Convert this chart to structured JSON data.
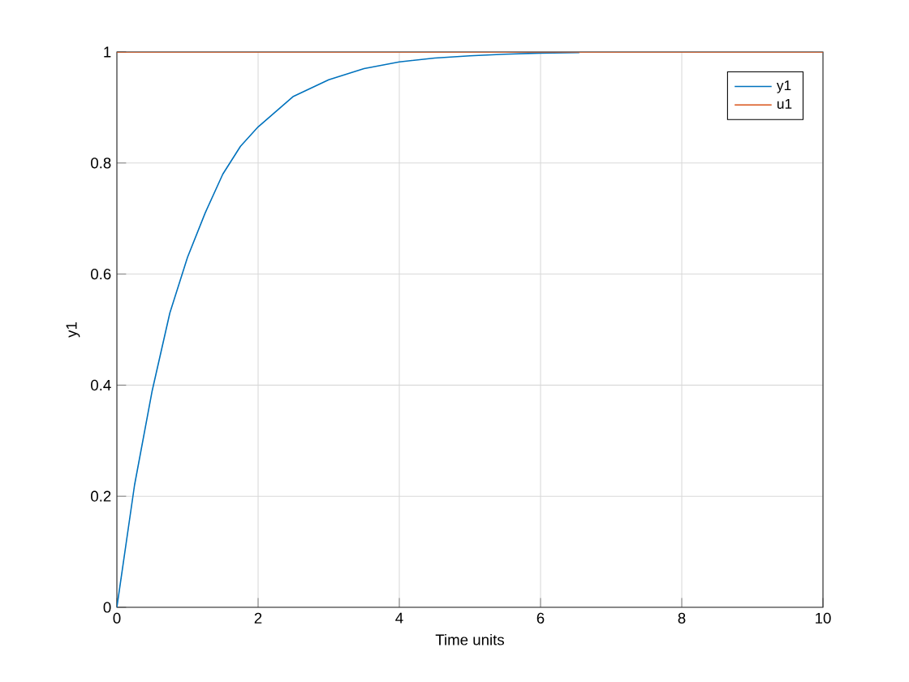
{
  "chart_data": {
    "type": "line",
    "xlabel": "Time units",
    "ylabel": "y1",
    "xlim": [
      0,
      10
    ],
    "ylim": [
      0,
      1
    ],
    "xticks": [
      0,
      2,
      4,
      6,
      8,
      10
    ],
    "yticks": [
      0,
      0.2,
      0.4,
      0.6,
      0.8,
      1
    ],
    "grid": true,
    "legend": "top right",
    "series": [
      {
        "name": "y1",
        "color": "#0072bd",
        "x": [
          0,
          0.25,
          0.5,
          0.75,
          1,
          1.25,
          1.5,
          1.75,
          2,
          2.5,
          3,
          3.5,
          4,
          4.5,
          5,
          5.5,
          6,
          6.55
        ],
        "values": [
          0,
          0.22,
          0.39,
          0.53,
          0.63,
          0.71,
          0.78,
          0.83,
          0.865,
          0.92,
          0.95,
          0.97,
          0.982,
          0.989,
          0.993,
          0.996,
          0.998,
          0.999
        ]
      },
      {
        "name": "u1",
        "color": "#d95319",
        "x": [
          0,
          10
        ],
        "values": [
          1,
          1
        ]
      }
    ]
  }
}
